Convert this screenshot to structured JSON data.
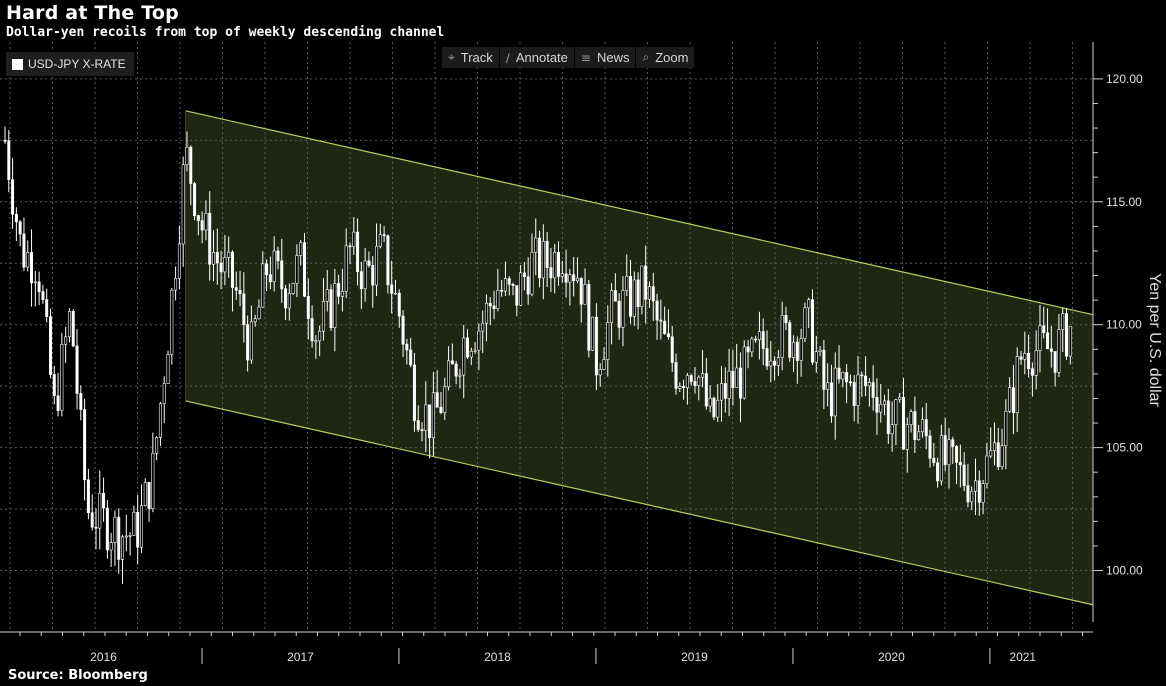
{
  "title": "Hard at The Top",
  "subtitle": "Dollar-yen recoils from top of weekly descending channel",
  "source": "Source: Bloomberg",
  "legend": {
    "label": "USD-JPY X-RATE",
    "swatch_color": "#ffffff"
  },
  "toolbar": {
    "track": "Track",
    "track_icon": "crosshair-icon",
    "annotate": "Annotate",
    "annotate_icon": "pencil-icon",
    "news": "News",
    "news_icon": "news-icon",
    "zoom": "Zoom",
    "zoom_icon": "magnifier-icon"
  },
  "chart_data": {
    "type": "line",
    "style": "weekly candlestick bars",
    "ylabel": "Yen per U.S. dollar",
    "ylim": [
      97.5,
      121.5
    ],
    "yticks": [
      "120.00",
      "115.00",
      "110.00",
      "105.00",
      "100.00"
    ],
    "ytick_values": [
      120,
      115,
      110,
      105,
      100
    ],
    "x_range": [
      "2016-01",
      "2021-06"
    ],
    "xtick_labels": [
      "2016",
      "2017",
      "2018",
      "2019",
      "2020",
      "2021"
    ],
    "xtick_dates": [
      "2016-07",
      "2017-07",
      "2018-07",
      "2019-07",
      "2020-07",
      "2021-03"
    ],
    "year_boundaries": [
      "2017-01",
      "2018-01",
      "2019-01",
      "2020-01",
      "2021-01"
    ],
    "grid": true,
    "bar_color": "#ffffff",
    "channel": {
      "fill_color": "#1f2712",
      "line_color": "#b5d25a",
      "start": "2016-12",
      "upper": [
        [
          "2016-12",
          118.7
        ],
        [
          "2021-06",
          110.6
        ]
      ],
      "lower": [
        [
          "2016-12",
          106.9
        ],
        [
          "2021-06",
          98.8
        ]
      ]
    },
    "series": [
      {
        "name": "USD-JPY X-RATE",
        "points": [
          [
            "2016-01",
            117.5
          ],
          [
            "2016-02",
            113.0
          ],
          [
            "2016-03",
            112.5
          ],
          [
            "2016-04",
            106.5
          ],
          [
            "2016-05",
            110.5
          ],
          [
            "2016-06",
            102.5
          ],
          [
            "2016-07",
            102.0
          ],
          [
            "2016-08",
            101.5
          ],
          [
            "2016-09",
            101.5
          ],
          [
            "2016-10",
            104.0
          ],
          [
            "2016-11",
            110.0
          ],
          [
            "2016-12",
            117.0
          ],
          [
            "2017-01",
            114.0
          ],
          [
            "2017-02",
            112.5
          ],
          [
            "2017-03",
            111.5
          ],
          [
            "2017-04",
            109.0
          ],
          [
            "2017-05",
            112.5
          ],
          [
            "2017-06",
            111.5
          ],
          [
            "2017-07",
            112.5
          ],
          [
            "2017-08",
            109.5
          ],
          [
            "2017-09",
            111.0
          ],
          [
            "2017-10",
            113.0
          ],
          [
            "2017-11",
            112.0
          ],
          [
            "2017-12",
            113.0
          ],
          [
            "2018-01",
            110.5
          ],
          [
            "2018-02",
            107.0
          ],
          [
            "2018-03",
            106.0
          ],
          [
            "2018-04",
            107.5
          ],
          [
            "2018-05",
            109.5
          ],
          [
            "2018-06",
            110.0
          ],
          [
            "2018-07",
            111.5
          ],
          [
            "2018-08",
            111.0
          ],
          [
            "2018-09",
            112.5
          ],
          [
            "2018-10",
            112.5
          ],
          [
            "2018-11",
            113.0
          ],
          [
            "2018-12",
            112.0
          ],
          [
            "2019-01",
            108.5
          ],
          [
            "2019-02",
            110.5
          ],
          [
            "2019-03",
            111.0
          ],
          [
            "2019-04",
            111.5
          ],
          [
            "2019-05",
            109.5
          ],
          [
            "2019-06",
            108.0
          ],
          [
            "2019-07",
            108.5
          ],
          [
            "2019-08",
            106.0
          ],
          [
            "2019-09",
            107.5
          ],
          [
            "2019-10",
            108.0
          ],
          [
            "2019-11",
            109.0
          ],
          [
            "2019-12",
            109.5
          ],
          [
            "2020-01",
            109.5
          ],
          [
            "2020-02",
            110.0
          ],
          [
            "2020-03",
            107.0
          ],
          [
            "2020-04",
            107.5
          ],
          [
            "2020-05",
            107.5
          ],
          [
            "2020-06",
            107.5
          ],
          [
            "2020-07",
            106.0
          ],
          [
            "2020-08",
            106.0
          ],
          [
            "2020-09",
            105.5
          ],
          [
            "2020-10",
            104.5
          ],
          [
            "2020-11",
            104.0
          ],
          [
            "2020-12",
            103.5
          ],
          [
            "2021-01",
            104.5
          ],
          [
            "2021-02",
            106.0
          ],
          [
            "2021-03",
            109.0
          ],
          [
            "2021-04",
            109.0
          ],
          [
            "2021-05",
            109.0
          ],
          [
            "2021-06",
            110.0
          ]
        ]
      }
    ]
  }
}
